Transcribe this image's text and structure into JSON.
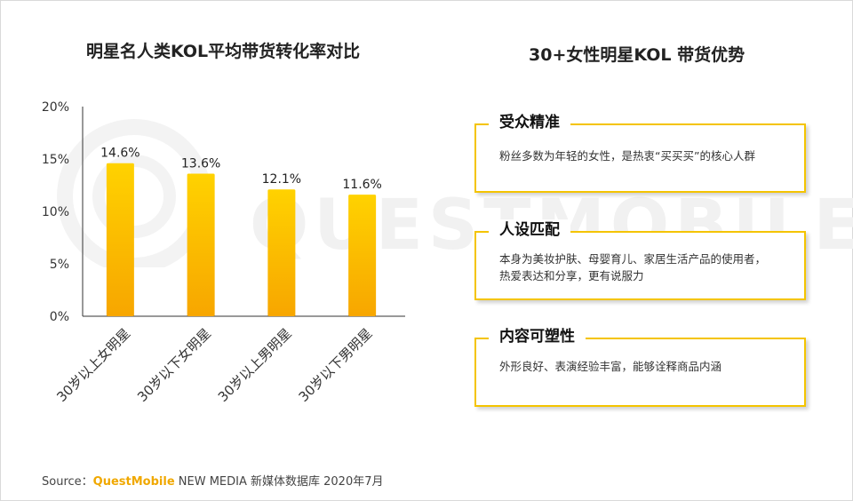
{
  "left_title": "明星名人类KOL平均带货转化率对比",
  "right_title": "30+女性明星KOL 带货优势",
  "watermark": "QUESTMOBILE",
  "colors": {
    "bar_top": "#ffd200",
    "bar_bottom": "#f7a600",
    "card_border": "#f4c400",
    "brand": "#f0a800"
  },
  "chart_data": {
    "type": "bar",
    "title": "明星名人类KOL平均带货转化率对比",
    "categories": [
      "30岁以上女明星",
      "30岁以下女明星",
      "30岁以上男明星",
      "30岁以下男明星"
    ],
    "values": [
      14.6,
      13.6,
      12.1,
      11.6
    ],
    "value_labels": [
      "14.6%",
      "13.6%",
      "12.1%",
      "11.6%"
    ],
    "y_ticks": [
      "0%",
      "5%",
      "10%",
      "15%",
      "20%"
    ],
    "y_tick_values": [
      0,
      5,
      10,
      15,
      20
    ],
    "ylim": [
      0,
      20
    ],
    "xlabel": "",
    "ylabel": "",
    "grid": false,
    "unit": "%"
  },
  "cards": [
    {
      "heading": "受众精准",
      "body": "粉丝多数为年轻的女性，是热衷“买买买”的核心人群"
    },
    {
      "heading": "人设匹配",
      "body": "本身为美妆护肤、母婴育儿、家居生活产品的使用者，热爱表达和分享，更有说服力"
    },
    {
      "heading": "内容可塑性",
      "body": "外形良好、表演经验丰富，能够诠释商品内涵"
    }
  ],
  "source": {
    "label": "Source：",
    "brand": "QuestMobile",
    "rest": " NEW MEDIA 新媒体数据库 2020年7月"
  }
}
